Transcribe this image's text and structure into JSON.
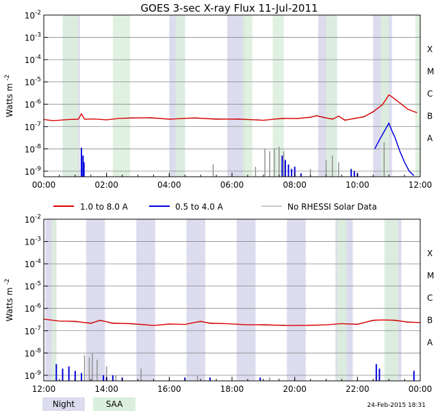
{
  "chart_data": {
    "type": "line",
    "title": "GOES 3-sec X-ray Flux   11-Jul-2011",
    "ylabel_base": "Watts m",
    "ylabel_exp": "-2",
    "y_ticks": [
      {
        "base": "10",
        "exp": "-9",
        "value": -9
      },
      {
        "base": "10",
        "exp": "-8",
        "value": -8
      },
      {
        "base": "10",
        "exp": "-7",
        "value": -7
      },
      {
        "base": "10",
        "exp": "-6",
        "value": -6
      },
      {
        "base": "10",
        "exp": "-5",
        "value": -5
      },
      {
        "base": "10",
        "exp": "-4",
        "value": -4
      },
      {
        "base": "10",
        "exp": "-3",
        "value": -3
      },
      {
        "base": "10",
        "exp": "-2",
        "value": -2
      }
    ],
    "ylim_log10": [
      -9.25,
      -2
    ],
    "flare_classes": [
      {
        "label": "A",
        "value": -7.5
      },
      {
        "label": "B",
        "value": -6.5
      },
      {
        "label": "C",
        "value": -5.5
      },
      {
        "label": "M",
        "value": -4.5
      },
      {
        "label": "X",
        "value": -3.5
      }
    ],
    "legend": [
      {
        "label": "1.0 to 8.0 A",
        "color": "#dd0000"
      },
      {
        "label": "0.5 to 4.0 A",
        "color": "#0000dd"
      },
      {
        "label": "No RHESSI Solar Data",
        "color": "#909090"
      }
    ],
    "bottom_legend": {
      "night": "Night",
      "saa": "SAA"
    },
    "timestamp": "24-Feb-2015 18:31",
    "colors": {
      "red": "#dd0000",
      "blue": "#0000dd",
      "gray": "#909090",
      "night": "#dcdcee",
      "saa": "#dcefdc"
    },
    "panels": [
      {
        "id": "am",
        "xlim_hours": [
          0,
          12
        ],
        "x_ticks": [
          {
            "h": 0,
            "label": "00:00"
          },
          {
            "h": 2,
            "label": "02:00"
          },
          {
            "h": 4,
            "label": "04:00"
          },
          {
            "h": 6,
            "label": "06:00"
          },
          {
            "h": 8,
            "label": "08:00"
          },
          {
            "h": 10,
            "label": "10:00"
          },
          {
            "h": 12,
            "label": "12:00"
          }
        ],
        "night": [
          [
            0.6,
            1.15
          ],
          [
            4.0,
            4.5
          ],
          [
            5.85,
            6.45
          ],
          [
            8.75,
            9.35
          ],
          [
            10.5,
            11.1
          ]
        ],
        "saa": [
          [
            0.6,
            1.1
          ],
          [
            2.2,
            2.75
          ],
          [
            4.2,
            4.5
          ],
          [
            6.35,
            6.65
          ],
          [
            7.3,
            7.65
          ],
          [
            9.0,
            9.35
          ],
          [
            10.75,
            11.0
          ],
          [
            11.85,
            12.0
          ]
        ],
        "gray_ranges": [
          [
            2.6,
            3.8
          ],
          [
            4.4,
            6.9
          ],
          [
            7.4,
            7.7
          ],
          [
            8.3,
            9.25
          ],
          [
            9.45,
            10.9
          ]
        ],
        "red": [
          [
            0,
            -6.7
          ],
          [
            0.3,
            -6.72
          ],
          [
            0.8,
            -6.7
          ],
          [
            1.1,
            -6.65
          ],
          [
            1.2,
            -6.45
          ],
          [
            1.3,
            -6.65
          ],
          [
            1.6,
            -6.68
          ],
          [
            2.0,
            -6.68
          ],
          [
            2.4,
            -6.65
          ],
          [
            2.8,
            -6.6
          ],
          [
            3.4,
            -6.62
          ],
          [
            4.0,
            -6.65
          ],
          [
            4.8,
            -6.63
          ],
          [
            5.5,
            -6.65
          ],
          [
            6.2,
            -6.68
          ],
          [
            7.0,
            -6.7
          ],
          [
            7.6,
            -6.65
          ],
          [
            8.1,
            -6.62
          ],
          [
            8.5,
            -6.6
          ],
          [
            8.7,
            -6.5
          ],
          [
            8.9,
            -6.6
          ],
          [
            9.2,
            -6.65
          ],
          [
            9.4,
            -6.55
          ],
          [
            9.6,
            -6.7
          ],
          [
            9.9,
            -6.65
          ],
          [
            10.2,
            -6.55
          ],
          [
            10.5,
            -6.35
          ],
          [
            10.8,
            -6.0
          ],
          [
            11.0,
            -5.6
          ],
          [
            11.1,
            -5.65
          ],
          [
            11.3,
            -5.9
          ],
          [
            11.6,
            -6.2
          ],
          [
            11.9,
            -6.4
          ]
        ],
        "blue_line": [
          [
            10.55,
            -8.0
          ],
          [
            10.7,
            -7.6
          ],
          [
            10.9,
            -7.1
          ],
          [
            11.0,
            -6.85
          ],
          [
            11.1,
            -7.2
          ],
          [
            11.2,
            -7.5
          ],
          [
            11.35,
            -8.1
          ],
          [
            11.5,
            -8.6
          ],
          [
            11.65,
            -9.0
          ],
          [
            11.8,
            -9.2
          ]
        ],
        "blue_spikes": [
          [
            1.2,
            -7.95
          ],
          [
            1.25,
            -8.3
          ],
          [
            1.28,
            -8.6
          ],
          [
            7.6,
            -8.3
          ],
          [
            7.7,
            -8.5
          ],
          [
            7.8,
            -8.7
          ],
          [
            7.9,
            -8.9
          ],
          [
            8.0,
            -8.8
          ],
          [
            8.2,
            -9.1
          ],
          [
            9.8,
            -8.9
          ],
          [
            9.9,
            -9.0
          ],
          [
            10.0,
            -9.1
          ]
        ],
        "gray_spikes": [
          [
            7.05,
            -8.0
          ],
          [
            7.2,
            -8.1
          ],
          [
            7.35,
            -8.0
          ],
          [
            7.5,
            -7.9
          ],
          [
            7.65,
            -8.1
          ],
          [
            5.4,
            -8.7
          ],
          [
            6.75,
            -8.8
          ],
          [
            8.5,
            -8.9
          ],
          [
            9.0,
            -8.5
          ],
          [
            9.2,
            -8.3
          ],
          [
            9.4,
            -8.6
          ],
          [
            10.85,
            -7.7
          ]
        ]
      },
      {
        "id": "pm",
        "xlim_hours": [
          12,
          24
        ],
        "x_ticks": [
          {
            "h": 12,
            "label": "12:00"
          },
          {
            "h": 14,
            "label": "14:00"
          },
          {
            "h": 16,
            "label": "16:00"
          },
          {
            "h": 18,
            "label": "18:00"
          },
          {
            "h": 20,
            "label": "20:00"
          },
          {
            "h": 22,
            "label": "22:00"
          },
          {
            "h": 24,
            "label": "00:00"
          }
        ],
        "night": [
          [
            12.05,
            12.4
          ],
          [
            13.35,
            13.95
          ],
          [
            14.95,
            15.55
          ],
          [
            16.55,
            17.15
          ],
          [
            18.15,
            18.75
          ],
          [
            19.75,
            20.35
          ],
          [
            21.3,
            21.85
          ],
          [
            22.9,
            23.4
          ]
        ],
        "saa": [
          [
            12.25,
            12.4
          ],
          [
            21.35,
            21.65
          ],
          [
            22.85,
            23.3
          ]
        ],
        "gray_ranges": [
          [
            12.75,
            15.3
          ],
          [
            16.9,
            17.7
          ],
          [
            18.8,
            19.7
          ],
          [
            21.7,
            22.7
          ],
          [
            23.1,
            23.8
          ]
        ],
        "red": [
          [
            12,
            -6.5
          ],
          [
            12.5,
            -6.55
          ],
          [
            13.0,
            -6.6
          ],
          [
            13.5,
            -6.65
          ],
          [
            13.8,
            -6.55
          ],
          [
            14.2,
            -6.65
          ],
          [
            14.8,
            -6.7
          ],
          [
            15.5,
            -6.75
          ],
          [
            16.0,
            -6.72
          ],
          [
            16.5,
            -6.7
          ],
          [
            17.0,
            -6.6
          ],
          [
            17.3,
            -6.65
          ],
          [
            17.8,
            -6.7
          ],
          [
            18.5,
            -6.72
          ],
          [
            19.0,
            -6.75
          ],
          [
            19.7,
            -6.75
          ],
          [
            20.4,
            -6.78
          ],
          [
            21.0,
            -6.72
          ],
          [
            21.5,
            -6.7
          ],
          [
            22.0,
            -6.7
          ],
          [
            22.5,
            -6.55
          ],
          [
            22.8,
            -6.5
          ],
          [
            23.2,
            -6.55
          ],
          [
            23.6,
            -6.6
          ],
          [
            24.0,
            -6.65
          ]
        ],
        "blue_line": [],
        "blue_spikes": [
          [
            12.4,
            -8.5
          ],
          [
            12.6,
            -8.7
          ],
          [
            12.8,
            -8.6
          ],
          [
            13.0,
            -8.8
          ],
          [
            13.2,
            -8.9
          ],
          [
            13.9,
            -9.0
          ],
          [
            14.0,
            -9.1
          ],
          [
            14.2,
            -9.0
          ],
          [
            14.5,
            -9.1
          ],
          [
            16.5,
            -9.1
          ],
          [
            17.3,
            -9.1
          ],
          [
            18.9,
            -9.1
          ],
          [
            22.6,
            -8.5
          ],
          [
            22.7,
            -8.7
          ],
          [
            23.8,
            -8.8
          ]
        ],
        "gray_spikes": [
          [
            13.3,
            -8.1
          ],
          [
            13.45,
            -8.2
          ],
          [
            13.55,
            -8.0
          ],
          [
            13.7,
            -8.3
          ],
          [
            14.0,
            -8.6
          ],
          [
            14.3,
            -9.0
          ],
          [
            15.1,
            -8.7
          ],
          [
            16.9,
            -9.0
          ],
          [
            19.2,
            -9.1
          ]
        ]
      }
    ]
  }
}
